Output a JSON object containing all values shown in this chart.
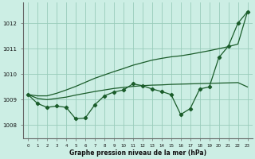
{
  "xlabel": "Graphe pression niveau de la mer (hPa)",
  "xlim": [
    -0.5,
    23.5
  ],
  "ylim": [
    1007.5,
    1012.8
  ],
  "yticks": [
    1008,
    1009,
    1010,
    1011,
    1012
  ],
  "xticks": [
    0,
    1,
    2,
    3,
    4,
    5,
    6,
    7,
    8,
    9,
    10,
    11,
    12,
    13,
    14,
    15,
    16,
    17,
    18,
    19,
    20,
    21,
    22,
    23
  ],
  "bg_color": "#cceee4",
  "grid_color": "#99ccbb",
  "line_color": "#1a5c2a",
  "series": {
    "zigzag": [
      1009.2,
      1008.85,
      1008.7,
      1008.75,
      1008.7,
      1008.25,
      1008.28,
      1008.8,
      1009.15,
      1009.3,
      1009.38,
      1009.62,
      1009.55,
      1009.42,
      1009.32,
      1009.2,
      1008.42,
      1008.65,
      1009.42,
      1009.5,
      1010.65,
      1011.1,
      1012.0,
      1012.45
    ],
    "upper": [
      1009.2,
      1009.15,
      1009.15,
      1009.25,
      1009.38,
      1009.52,
      1009.68,
      1009.84,
      1009.97,
      1010.1,
      1010.22,
      1010.35,
      1010.45,
      1010.55,
      1010.62,
      1010.68,
      1010.72,
      1010.78,
      1010.85,
      1010.92,
      1011.0,
      1011.08,
      1011.18,
      1012.45
    ],
    "lower": [
      1009.2,
      1009.05,
      1009.0,
      1009.05,
      1009.1,
      1009.18,
      1009.25,
      1009.32,
      1009.38,
      1009.44,
      1009.48,
      1009.52,
      1009.55,
      1009.57,
      1009.58,
      1009.6,
      1009.61,
      1009.62,
      1009.63,
      1009.64,
      1009.65,
      1009.66,
      1009.67,
      1009.5
    ]
  }
}
